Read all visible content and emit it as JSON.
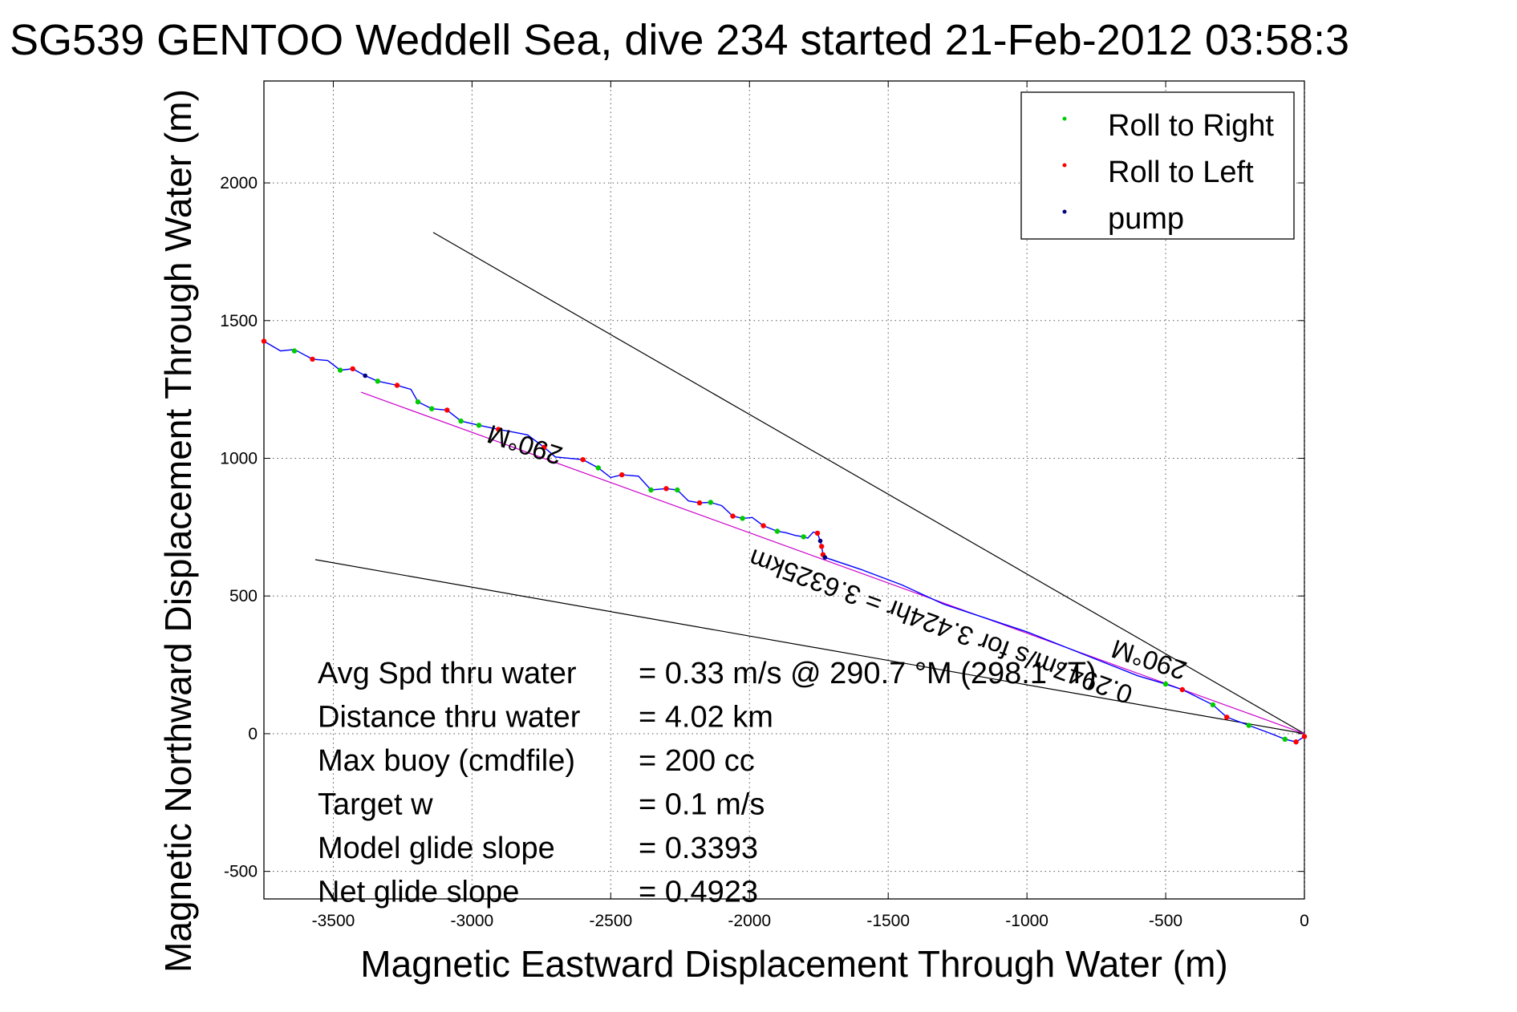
{
  "chart_data": {
    "type": "line",
    "title": "SG539 GENTOO Weddell Sea, dive 234 started 21-Feb-2012 03:58:3",
    "xlabel": "Magnetic Eastward Displacement Through Water (m)",
    "ylabel": "Magnetic Northward Displacement Through Water (m)",
    "xlim": [
      -3750,
      0
    ],
    "ylim": [
      -600,
      2370
    ],
    "grid": true,
    "xticks": [
      -3500,
      -3000,
      -2500,
      -2000,
      -1500,
      -1000,
      -500,
      0
    ],
    "yticks": [
      -500,
      0,
      500,
      1000,
      1500,
      2000
    ],
    "xtick_labels": [
      "-3500",
      "-3000",
      "-2500",
      "-2000",
      "-1500",
      "-1000",
      "-500",
      "0"
    ],
    "ytick_labels": [
      "-500",
      "0",
      "500",
      "1000",
      "1500",
      "2000"
    ],
    "legend": {
      "position": "top-right",
      "entries": [
        {
          "label": "Roll to Right",
          "color": "#00cc00"
        },
        {
          "label": "Roll to Left",
          "color": "#ff0000"
        },
        {
          "label": "pump",
          "color": "#000080"
        }
      ]
    },
    "track": {
      "name": "glider track",
      "color": "#0000ff",
      "x": [
        -3750,
        -3690,
        -3640,
        -3575,
        -3520,
        -3475,
        -3430,
        -3385,
        -3340,
        -3270,
        -3220,
        -3195,
        -3145,
        -3090,
        -3040,
        -2975,
        -2905,
        -2850,
        -2800,
        -2740,
        -2700,
        -2600,
        -2545,
        -2500,
        -2460,
        -2400,
        -2355,
        -2300,
        -2260,
        -2220,
        -2180,
        -2140,
        -2100,
        -2060,
        -2025,
        -1990,
        -1950,
        -1900,
        -1870,
        -1835,
        -1805,
        -1790,
        -1770,
        -1755,
        -1745,
        -1740,
        -1735,
        -1728,
        -1600,
        -1450,
        -1300,
        -1150,
        -1000,
        -850,
        -700,
        -600,
        -500,
        -440,
        -400,
        -330,
        -280,
        -200,
        -120,
        -70,
        -30,
        0
      ],
      "y": [
        1425,
        1390,
        1395,
        1360,
        1355,
        1320,
        1325,
        1300,
        1280,
        1265,
        1250,
        1205,
        1180,
        1175,
        1135,
        1120,
        1105,
        1095,
        1085,
        1040,
        1005,
        995,
        965,
        930,
        940,
        935,
        885,
        890,
        885,
        845,
        838,
        840,
        828,
        790,
        782,
        785,
        755,
        735,
        730,
        720,
        715,
        710,
        732,
        728,
        700,
        680,
        650,
        640,
        597,
        540,
        470,
        420,
        370,
        310,
        250,
        210,
        180,
        160,
        140,
        105,
        60,
        30,
        0,
        -20,
        -30,
        -10
      ]
    },
    "roll_to_right_points": {
      "x": [
        -3640,
        -3475,
        -3340,
        -3195,
        -3145,
        -3040,
        -2975,
        -2545,
        -2355,
        -2260,
        -2140,
        -2025,
        -1900,
        -1805,
        -500,
        -330,
        -200,
        -70
      ],
      "y": [
        1390,
        1320,
        1280,
        1205,
        1180,
        1135,
        1120,
        965,
        885,
        885,
        840,
        782,
        735,
        715,
        180,
        105,
        30,
        -20
      ]
    },
    "roll_to_left_points": {
      "x": [
        -3750,
        -3575,
        -3430,
        -3270,
        -3090,
        -2905,
        -2740,
        -2600,
        -2460,
        -2300,
        -2180,
        -2060,
        -1950,
        -1755,
        -1740,
        -1735,
        -440,
        -280,
        -30,
        0
      ],
      "y": [
        1425,
        1360,
        1325,
        1265,
        1175,
        1105,
        1040,
        995,
        940,
        890,
        838,
        790,
        755,
        728,
        680,
        650,
        160,
        60,
        -30,
        -10
      ]
    },
    "pump_points": {
      "x": [
        -3385,
        -1745,
        -1728
      ],
      "y": [
        1300,
        700,
        640
      ]
    },
    "reference_lines": [
      {
        "name": "upper heading bound",
        "color": "#000000",
        "x": [
          -3140,
          0
        ],
        "y": [
          1820,
          0
        ]
      },
      {
        "name": "lower heading bound",
        "color": "#000000",
        "x": [
          -3565,
          0
        ],
        "y": [
          632,
          0
        ]
      },
      {
        "name": "mean heading line",
        "color": "#cc00cc",
        "x": [
          -3400,
          0
        ],
        "y": [
          1240,
          0
        ]
      }
    ],
    "annotations": [
      {
        "text": "290°M",
        "x": -2800,
        "y": 1080,
        "rotation_deg": 198
      },
      {
        "text": "0.2947m/s for 3.424hr = 3.6325km",
        "x": -1300,
        "y": 420,
        "rotation_deg": 200
      },
      {
        "text": "290°M",
        "x": -550,
        "y": 300,
        "rotation_deg": 198
      }
    ],
    "stats": [
      {
        "label": "Avg Spd thru water",
        "value": "=  0.33 m/s @ 290.7 °M (298.1 °T)"
      },
      {
        "label": "Distance thru water",
        "value": "=  4.02 km"
      },
      {
        "label": "Max buoy (cmdfile)",
        "value": "= 200 cc"
      },
      {
        "label": "Target w",
        "value": "= 0.1 m/s"
      },
      {
        "label": "Model glide slope",
        "value": "= 0.3393"
      },
      {
        "label": "Net glide slope",
        "value": "= 0.4923"
      }
    ]
  }
}
